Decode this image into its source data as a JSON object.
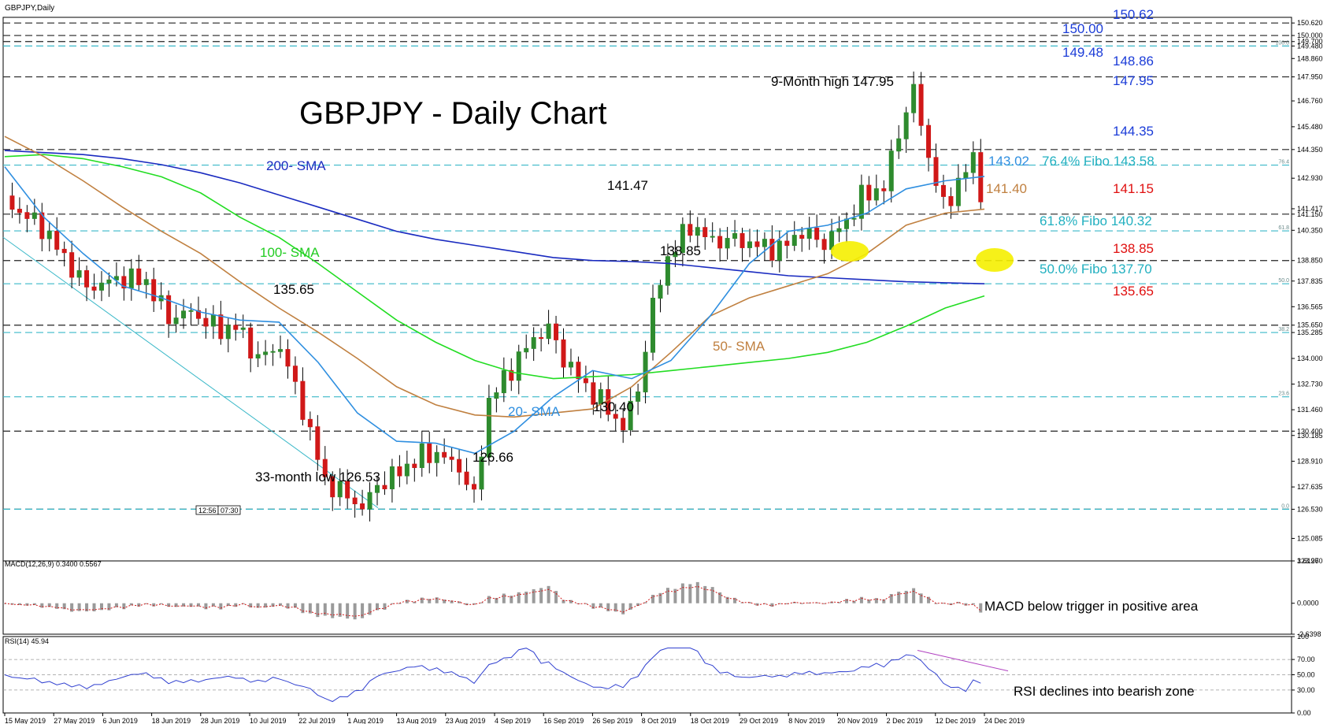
{
  "header": {
    "symbol_label": "GBPJPY,Daily",
    "title": "GBPJPY - Daily Chart",
    "timestamps": [
      "12:56",
      "07:30"
    ]
  },
  "colors": {
    "bull": "#2e8b2e",
    "bear": "#d01818",
    "sma20": "#2f8fe0",
    "sma50": "#c08040",
    "sma100": "#22dd22",
    "sma200": "#1a2bc0",
    "fibo": "#3ab8c8",
    "macd_hist": "#9a9a9a",
    "macd_signal": "#d01818",
    "rsi": "#3040d0",
    "rsi_trend": "#b040c0",
    "highlight": "#f5f000",
    "text_blue": "#1b3cd8",
    "text_red": "#e01010",
    "text_cyan": "#22b0c0",
    "text_tan": "#c08040",
    "text_green": "#22cc22",
    "text_skyblue": "#2f8fe0"
  },
  "chart_data": [
    {
      "type": "candlestick",
      "title": "GBPJPY - Daily Chart",
      "x_tick_labels": [
        "15 May 2019",
        "27 May 2019",
        "6 Jun 2019",
        "18 Jun 2019",
        "28 Jun 2019",
        "10 Jul 2019",
        "22 Jul 2019",
        "1 Aug 2019",
        "13 Aug 2019",
        "23 Aug 2019",
        "4 Sep 2019",
        "16 Sep 2019",
        "26 Sep 2019",
        "8 Oct 2019",
        "18 Oct 2019",
        "29 Oct 2019",
        "8 Nov 2019",
        "20 Nov 2019",
        "2 Dec 2019",
        "12 Dec 2019",
        "24 Dec 2019"
      ],
      "y_tick_labels": [
        "150.620",
        "150.000",
        "149.700",
        "149.480",
        "148.860",
        "147.950",
        "146.760",
        "145.480",
        "144.350",
        "142.930",
        "141.417",
        "141.150",
        "140.350",
        "138.850",
        "137.835",
        "136.565",
        "135.650",
        "135.285",
        "134.000",
        "132.730",
        "131.460",
        "130.400",
        "130.185",
        "128.910",
        "127.635",
        "126.530",
        "125.085",
        "123.970"
      ],
      "ylim": [
        123.97,
        150.9
      ],
      "series": [
        {
          "name": "200- SMA",
          "values": [
            144.3,
            144.2,
            144.1,
            143.9,
            143.6,
            143.2,
            142.7,
            142.1,
            141.5,
            140.9,
            140.3,
            139.9,
            139.6,
            139.3,
            139.0,
            138.85,
            138.8,
            138.7,
            138.5,
            138.3,
            138.1,
            138.0,
            137.9,
            137.8,
            137.75,
            137.7
          ]
        },
        {
          "name": "100- SMA",
          "values": [
            144.0,
            144.1,
            143.9,
            143.5,
            143.0,
            142.2,
            141.0,
            140.0,
            138.7,
            137.3,
            135.9,
            134.8,
            133.9,
            133.3,
            133.0,
            133.1,
            133.2,
            133.4,
            133.6,
            133.8,
            134.0,
            134.3,
            134.8,
            135.6,
            136.5,
            137.1
          ]
        },
        {
          "name": "50- SMA",
          "values": [
            145.0,
            144.0,
            142.8,
            141.5,
            140.3,
            139.2,
            137.8,
            136.5,
            135.3,
            134.0,
            132.6,
            131.7,
            131.2,
            131.1,
            131.3,
            131.5,
            132.6,
            134.3,
            136.1,
            137.0,
            137.6,
            138.2,
            139.2,
            140.6,
            141.2,
            141.4
          ]
        },
        {
          "name": "20- SMA",
          "values": [
            143.5,
            141.0,
            139.2,
            137.6,
            137.0,
            136.3,
            135.9,
            135.8,
            133.8,
            131.3,
            129.9,
            129.8,
            129.3,
            130.4,
            132.1,
            133.4,
            133.0,
            133.9,
            136.1,
            138.7,
            140.3,
            140.6,
            141.2,
            142.4,
            142.8,
            143.02
          ]
        }
      ],
      "ohlc_summary": {
        "start_close": 141.8,
        "low_1": 126.53,
        "low_2": 126.66,
        "mid_high": 135.65,
        "low_3": 130.4,
        "high_1": 141.47,
        "pullback": 138.85,
        "high_max": 147.95,
        "last_close": 141.15
      },
      "annotations": [
        {
          "text": "9-Month high 147.95",
          "value": 147.95
        },
        {
          "text": "141.47",
          "value": 141.47
        },
        {
          "text": "138.85",
          "value": 138.85
        },
        {
          "text": "135.65",
          "value": 135.65
        },
        {
          "text": "130.40",
          "value": 130.4
        },
        {
          "text": "126.66",
          "value": 126.66
        },
        {
          "text": "33-month low 126.53",
          "value": 126.53
        },
        {
          "text": "200- SMA"
        },
        {
          "text": "50- SMA"
        },
        {
          "text": "100- SMA"
        },
        {
          "text": "20- SMA"
        }
      ],
      "right_labels": [
        {
          "text": "150.62",
          "color": "blue"
        },
        {
          "text": "150.00",
          "color": "blue"
        },
        {
          "text": "149.48",
          "color": "blue"
        },
        {
          "text": "148.86",
          "color": "blue"
        },
        {
          "text": "147.95",
          "color": "blue"
        },
        {
          "text": "144.35",
          "color": "blue"
        },
        {
          "text": "143.02",
          "color": "skyblue"
        },
        {
          "text": "76.4% Fibo 143.58",
          "color": "cyan"
        },
        {
          "text": "141.40",
          "color": "tan"
        },
        {
          "text": "141.15",
          "color": "red"
        },
        {
          "text": "61.8% Fibo 140.32",
          "color": "cyan"
        },
        {
          "text": "138.85",
          "color": "red"
        },
        {
          "text": "50.0% Fibo 137.70",
          "color": "cyan"
        },
        {
          "text": "135.65",
          "color": "red"
        }
      ],
      "fibo_levels": [
        {
          "label": "100.0",
          "value": 149.48
        },
        {
          "label": "76.4",
          "value": 143.58
        },
        {
          "label": "61.8",
          "value": 140.32
        },
        {
          "label": "50.0",
          "value": 137.7
        },
        {
          "label": "38.2",
          "value": 135.285
        },
        {
          "label": "23.6",
          "value": 132.1
        },
        {
          "label": "0.0",
          "value": 126.53
        }
      ],
      "black_dashed_levels": [
        150.62,
        150.0,
        149.7,
        147.95,
        144.35,
        141.15,
        138.85,
        135.65,
        130.4,
        126.53
      ]
    },
    {
      "type": "bar",
      "title": "MACD(12,26,9) 0.3400 0.5567",
      "y_tick_labels": [
        "3.6126",
        "0.0000",
        "-2.6398"
      ],
      "ylim": [
        -2.6398,
        3.6126
      ],
      "annotation": "MACD below trigger in positive area"
    },
    {
      "type": "line",
      "title": "RSI(14) 45.94",
      "y_tick_labels": [
        "100",
        "70.00",
        "50.00",
        "30.00",
        "0.00"
      ],
      "ylim": [
        0,
        100
      ],
      "annotation": "RSI declines into bearish zone"
    }
  ]
}
